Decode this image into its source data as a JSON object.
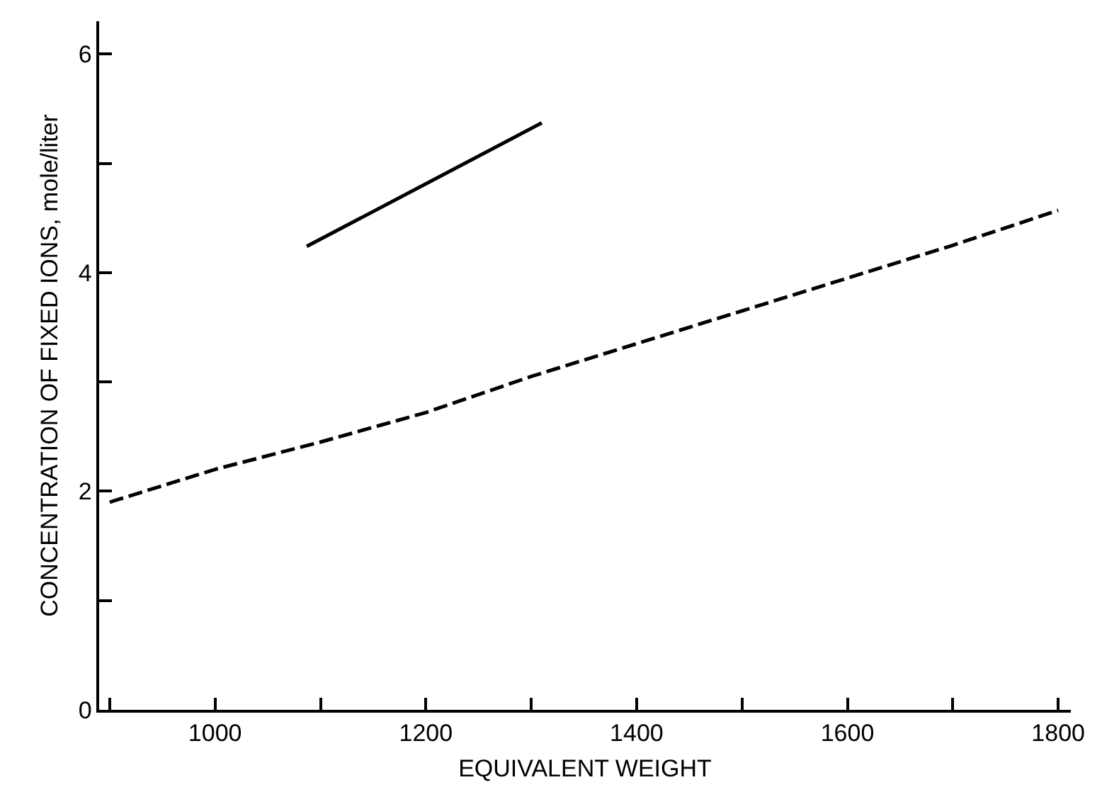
{
  "chart_data": {
    "type": "line",
    "xlabel": "EQUIVALENT WEIGHT",
    "ylabel": "CONCENTRATION OF FIXED IONS, mole/liter",
    "xlim": [
      890,
      1812
    ],
    "ylim": [
      0,
      6.3
    ],
    "xticks": [
      {
        "value": 900,
        "label": null
      },
      1000,
      {
        "value": 1100,
        "label": null
      },
      1200,
      {
        "value": 1300,
        "label": null
      },
      1400,
      {
        "value": 1500,
        "label": null
      },
      1600,
      {
        "value": 1700,
        "label": null
      },
      1800
    ],
    "yticks": [
      0,
      {
        "value": 1,
        "label": null
      },
      2,
      {
        "value": 3,
        "label": null
      },
      4,
      {
        "value": 5,
        "label": null
      },
      6
    ],
    "grid": false,
    "marker": "none",
    "series": [
      {
        "color": "#000000",
        "line_style": "solid",
        "x": [
          1087,
          1310
        ],
        "values": [
          4.24,
          5.37
        ]
      },
      {
        "color": "#000000",
        "line_style": "dashed",
        "x": [
          900,
          1000,
          1100,
          1200,
          1300,
          1400,
          1500,
          1600,
          1700,
          1800
        ],
        "values": [
          1.9,
          2.2,
          2.45,
          2.72,
          3.05,
          3.35,
          3.65,
          3.95,
          4.25,
          4.57
        ]
      }
    ]
  }
}
